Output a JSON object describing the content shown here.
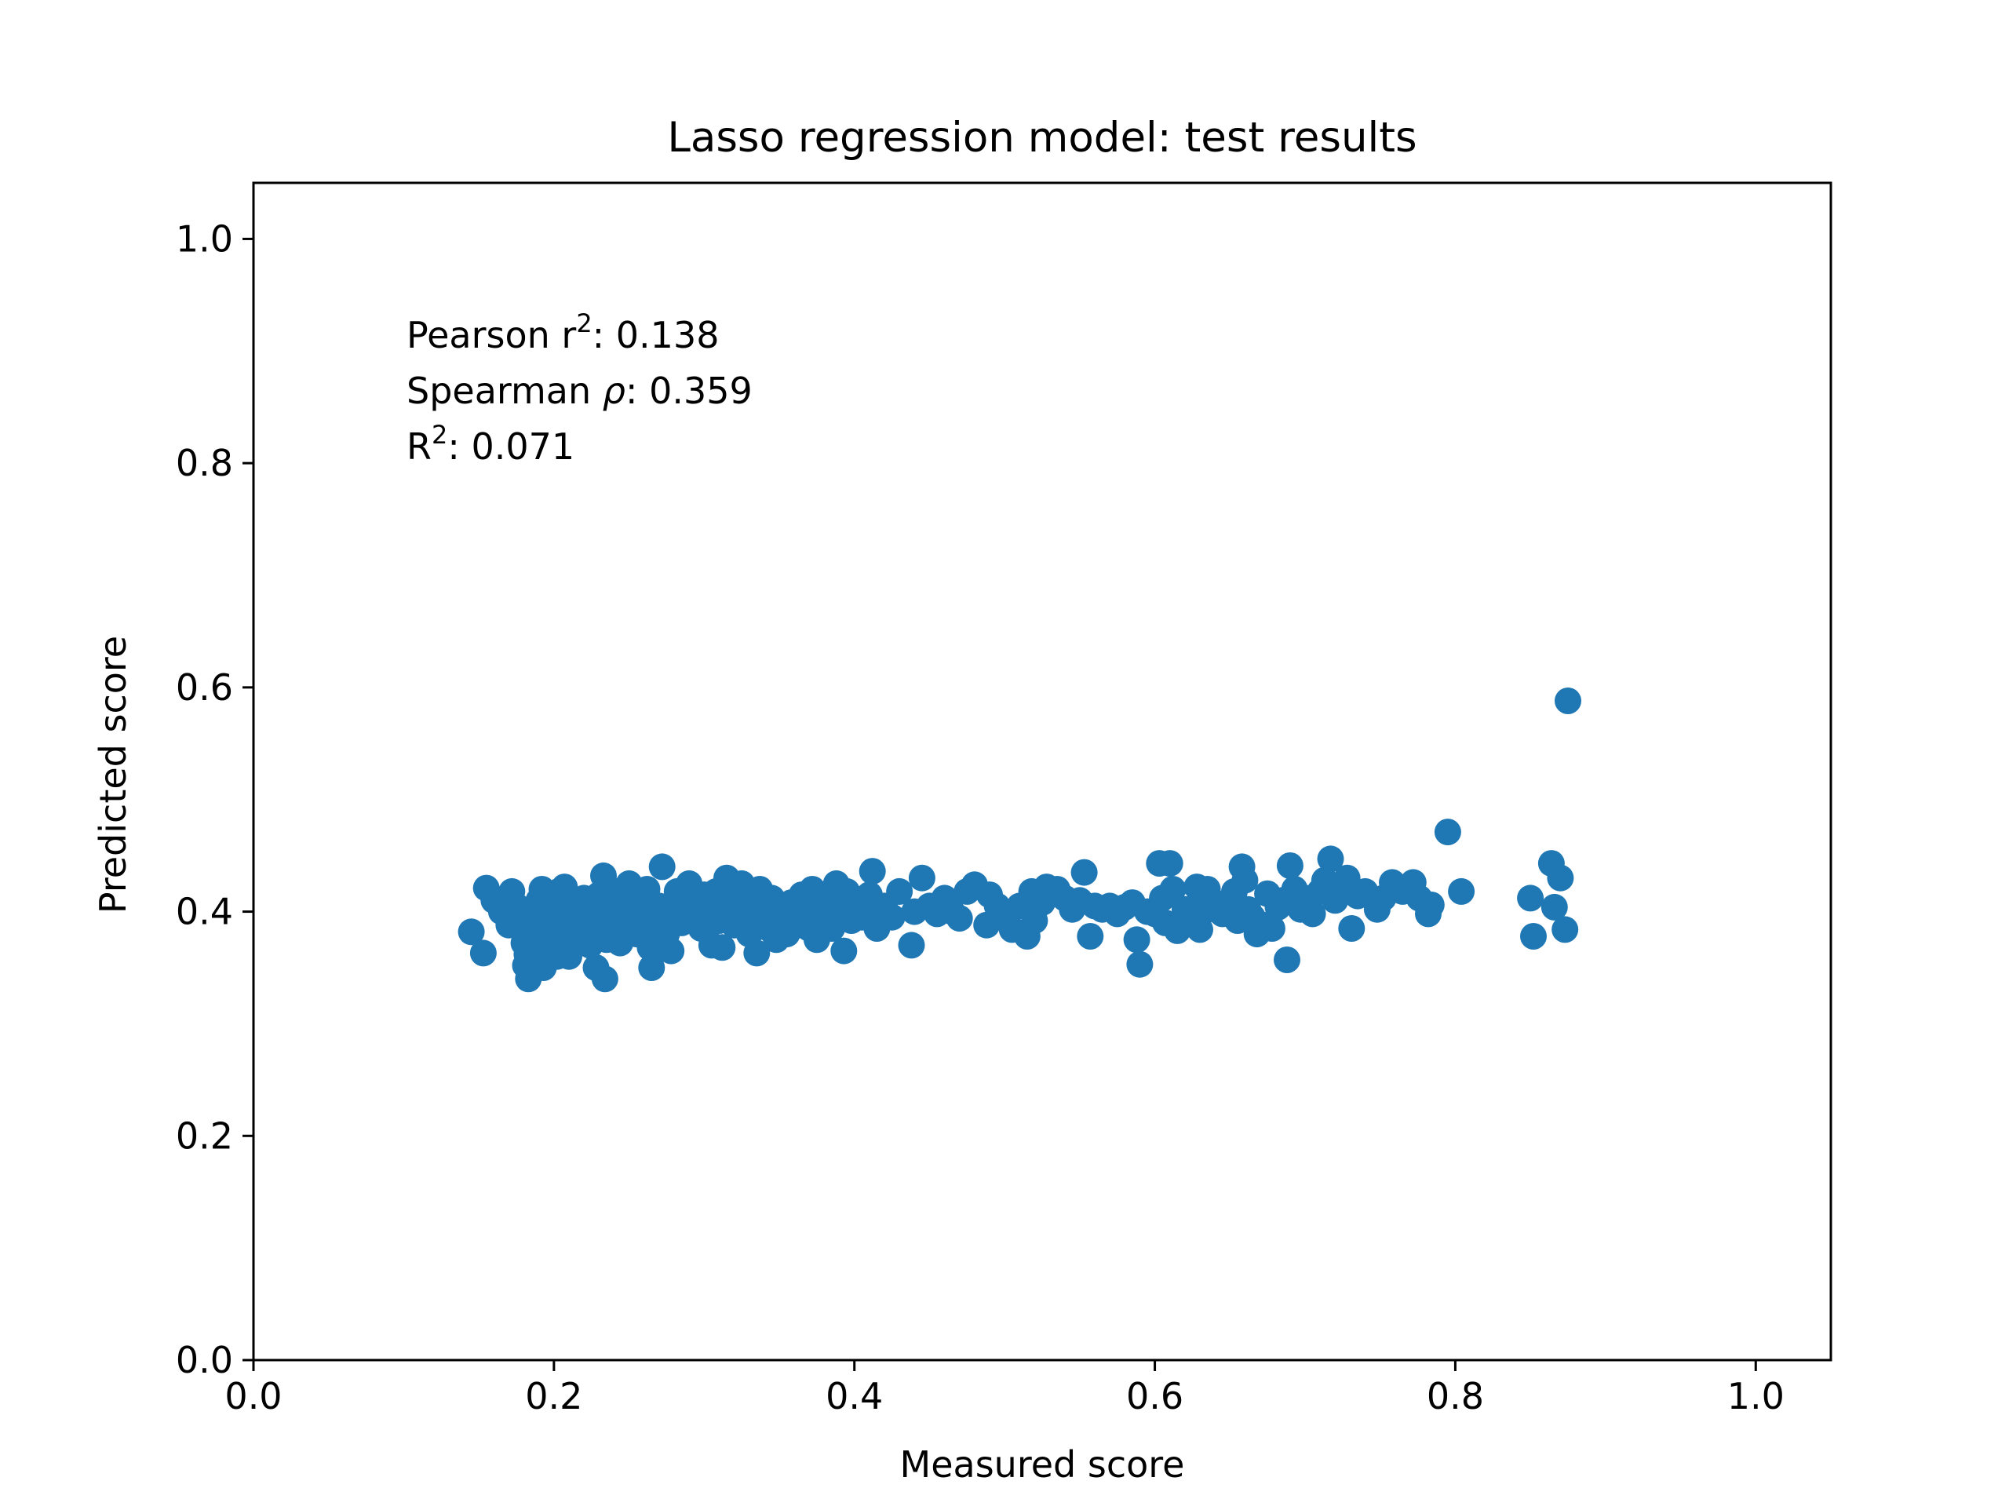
{
  "chart_data": {
    "type": "scatter",
    "title": "Lasso regression model: test results",
    "xlabel": "Measured score",
    "ylabel": "Predicted score",
    "xlim": [
      0.0,
      1.05
    ],
    "ylim": [
      0.0,
      1.05
    ],
    "xticks": [
      "0.0",
      "0.2",
      "0.4",
      "0.6",
      "0.8",
      "1.0"
    ],
    "yticks": [
      "0.0",
      "0.2",
      "0.4",
      "0.6",
      "0.8",
      "1.0"
    ],
    "grid": false,
    "legend": null,
    "marker_color": "#1f77b4",
    "annotations": [
      {
        "base": "Pearson r",
        "sup": "2",
        "suffix": ": 0.138"
      },
      {
        "base": "Spearman ",
        "italic": "ρ",
        "suffix": ": 0.359"
      },
      {
        "base": "R",
        "sup": "2",
        "suffix": ": 0.071"
      }
    ],
    "points": [
      [
        0.145,
        0.382
      ],
      [
        0.153,
        0.363
      ],
      [
        0.155,
        0.421
      ],
      [
        0.16,
        0.41
      ],
      [
        0.165,
        0.4
      ],
      [
        0.17,
        0.388
      ],
      [
        0.172,
        0.418
      ],
      [
        0.175,
        0.405
      ],
      [
        0.178,
        0.395
      ],
      [
        0.18,
        0.372
      ],
      [
        0.181,
        0.352
      ],
      [
        0.182,
        0.362
      ],
      [
        0.183,
        0.34
      ],
      [
        0.185,
        0.38
      ],
      [
        0.187,
        0.398
      ],
      [
        0.188,
        0.367
      ],
      [
        0.19,
        0.41
      ],
      [
        0.192,
        0.42
      ],
      [
        0.193,
        0.35
      ],
      [
        0.195,
        0.385
      ],
      [
        0.197,
        0.375
      ],
      [
        0.198,
        0.405
      ],
      [
        0.2,
        0.395
      ],
      [
        0.202,
        0.36
      ],
      [
        0.203,
        0.418
      ],
      [
        0.205,
        0.385
      ],
      [
        0.207,
        0.422
      ],
      [
        0.208,
        0.398
      ],
      [
        0.21,
        0.36
      ],
      [
        0.212,
        0.375
      ],
      [
        0.215,
        0.405
      ],
      [
        0.217,
        0.39
      ],
      [
        0.218,
        0.382
      ],
      [
        0.22,
        0.412
      ],
      [
        0.222,
        0.395
      ],
      [
        0.224,
        0.37
      ],
      [
        0.225,
        0.4
      ],
      [
        0.228,
        0.35
      ],
      [
        0.23,
        0.415
      ],
      [
        0.232,
        0.388
      ],
      [
        0.233,
        0.432
      ],
      [
        0.234,
        0.34
      ],
      [
        0.235,
        0.375
      ],
      [
        0.237,
        0.42
      ],
      [
        0.24,
        0.398
      ],
      [
        0.242,
        0.382
      ],
      [
        0.244,
        0.372
      ],
      [
        0.245,
        0.41
      ],
      [
        0.248,
        0.39
      ],
      [
        0.25,
        0.425
      ],
      [
        0.252,
        0.405
      ],
      [
        0.255,
        0.38
      ],
      [
        0.257,
        0.415
      ],
      [
        0.26,
        0.395
      ],
      [
        0.262,
        0.42
      ],
      [
        0.264,
        0.368
      ],
      [
        0.265,
        0.35
      ],
      [
        0.267,
        0.388
      ],
      [
        0.27,
        0.405
      ],
      [
        0.272,
        0.44
      ],
      [
        0.274,
        0.395
      ],
      [
        0.275,
        0.38
      ],
      [
        0.278,
        0.365
      ],
      [
        0.28,
        0.4
      ],
      [
        0.282,
        0.418
      ],
      [
        0.285,
        0.39
      ],
      [
        0.288,
        0.408
      ],
      [
        0.29,
        0.425
      ],
      [
        0.292,
        0.395
      ],
      [
        0.295,
        0.405
      ],
      [
        0.298,
        0.385
      ],
      [
        0.3,
        0.415
      ],
      [
        0.302,
        0.4
      ],
      [
        0.305,
        0.37
      ],
      [
        0.308,
        0.418
      ],
      [
        0.31,
        0.392
      ],
      [
        0.312,
        0.368
      ],
      [
        0.315,
        0.43
      ],
      [
        0.317,
        0.405
      ],
      [
        0.32,
        0.388
      ],
      [
        0.322,
        0.415
      ],
      [
        0.325,
        0.425
      ],
      [
        0.328,
        0.398
      ],
      [
        0.33,
        0.38
      ],
      [
        0.332,
        0.41
      ],
      [
        0.335,
        0.363
      ],
      [
        0.337,
        0.42
      ],
      [
        0.34,
        0.395
      ],
      [
        0.343,
        0.385
      ],
      [
        0.345,
        0.412
      ],
      [
        0.348,
        0.375
      ],
      [
        0.35,
        0.405
      ],
      [
        0.353,
        0.392
      ],
      [
        0.355,
        0.38
      ],
      [
        0.358,
        0.408
      ],
      [
        0.36,
        0.398
      ],
      [
        0.363,
        0.388
      ],
      [
        0.365,
        0.415
      ],
      [
        0.368,
        0.402
      ],
      [
        0.37,
        0.385
      ],
      [
        0.372,
        0.42
      ],
      [
        0.375,
        0.375
      ],
      [
        0.378,
        0.408
      ],
      [
        0.38,
        0.395
      ],
      [
        0.383,
        0.412
      ],
      [
        0.385,
        0.385
      ],
      [
        0.388,
        0.425
      ],
      [
        0.39,
        0.4
      ],
      [
        0.393,
        0.365
      ],
      [
        0.395,
        0.418
      ],
      [
        0.398,
        0.392
      ],
      [
        0.4,
        0.405
      ],
      [
        0.405,
        0.395
      ],
      [
        0.41,
        0.415
      ],
      [
        0.412,
        0.436
      ],
      [
        0.415,
        0.385
      ],
      [
        0.42,
        0.405
      ],
      [
        0.425,
        0.395
      ],
      [
        0.43,
        0.418
      ],
      [
        0.438,
        0.37
      ],
      [
        0.44,
        0.4
      ],
      [
        0.445,
        0.43
      ],
      [
        0.45,
        0.405
      ],
      [
        0.455,
        0.398
      ],
      [
        0.46,
        0.412
      ],
      [
        0.465,
        0.4
      ],
      [
        0.47,
        0.394
      ],
      [
        0.475,
        0.418
      ],
      [
        0.48,
        0.424
      ],
      [
        0.488,
        0.388
      ],
      [
        0.49,
        0.415
      ],
      [
        0.495,
        0.405
      ],
      [
        0.5,
        0.398
      ],
      [
        0.505,
        0.384
      ],
      [
        0.51,
        0.405
      ],
      [
        0.515,
        0.378
      ],
      [
        0.518,
        0.418
      ],
      [
        0.52,
        0.392
      ],
      [
        0.525,
        0.408
      ],
      [
        0.528,
        0.422
      ],
      [
        0.535,
        0.42
      ],
      [
        0.54,
        0.412
      ],
      [
        0.545,
        0.402
      ],
      [
        0.55,
        0.41
      ],
      [
        0.553,
        0.435
      ],
      [
        0.557,
        0.378
      ],
      [
        0.56,
        0.405
      ],
      [
        0.565,
        0.402
      ],
      [
        0.57,
        0.405
      ],
      [
        0.575,
        0.398
      ],
      [
        0.58,
        0.404
      ],
      [
        0.585,
        0.408
      ],
      [
        0.588,
        0.375
      ],
      [
        0.59,
        0.353
      ],
      [
        0.595,
        0.4
      ],
      [
        0.6,
        0.398
      ],
      [
        0.603,
        0.443
      ],
      [
        0.605,
        0.412
      ],
      [
        0.607,
        0.39
      ],
      [
        0.61,
        0.443
      ],
      [
        0.612,
        0.42
      ],
      [
        0.615,
        0.383
      ],
      [
        0.62,
        0.402
      ],
      [
        0.625,
        0.394
      ],
      [
        0.628,
        0.422
      ],
      [
        0.63,
        0.384
      ],
      [
        0.632,
        0.41
      ],
      [
        0.635,
        0.42
      ],
      [
        0.64,
        0.402
      ],
      [
        0.645,
        0.398
      ],
      [
        0.65,
        0.41
      ],
      [
        0.653,
        0.418
      ],
      [
        0.655,
        0.392
      ],
      [
        0.658,
        0.44
      ],
      [
        0.66,
        0.428
      ],
      [
        0.662,
        0.402
      ],
      [
        0.665,
        0.395
      ],
      [
        0.668,
        0.38
      ],
      [
        0.672,
        0.388
      ],
      [
        0.675,
        0.416
      ],
      [
        0.678,
        0.385
      ],
      [
        0.682,
        0.404
      ],
      [
        0.685,
        0.41
      ],
      [
        0.688,
        0.357
      ],
      [
        0.69,
        0.441
      ],
      [
        0.693,
        0.42
      ],
      [
        0.697,
        0.402
      ],
      [
        0.7,
        0.412
      ],
      [
        0.705,
        0.398
      ],
      [
        0.71,
        0.418
      ],
      [
        0.713,
        0.428
      ],
      [
        0.717,
        0.447
      ],
      [
        0.72,
        0.41
      ],
      [
        0.724,
        0.424
      ],
      [
        0.728,
        0.43
      ],
      [
        0.731,
        0.385
      ],
      [
        0.735,
        0.414
      ],
      [
        0.74,
        0.418
      ],
      [
        0.748,
        0.402
      ],
      [
        0.752,
        0.412
      ],
      [
        0.758,
        0.426
      ],
      [
        0.765,
        0.418
      ],
      [
        0.772,
        0.426
      ],
      [
        0.776,
        0.412
      ],
      [
        0.782,
        0.398
      ],
      [
        0.784,
        0.406
      ],
      [
        0.795,
        0.471
      ],
      [
        0.804,
        0.418
      ],
      [
        0.85,
        0.412
      ],
      [
        0.852,
        0.378
      ],
      [
        0.864,
        0.443
      ],
      [
        0.866,
        0.404
      ],
      [
        0.87,
        0.43
      ],
      [
        0.873,
        0.384
      ],
      [
        0.875,
        0.588
      ]
    ]
  }
}
